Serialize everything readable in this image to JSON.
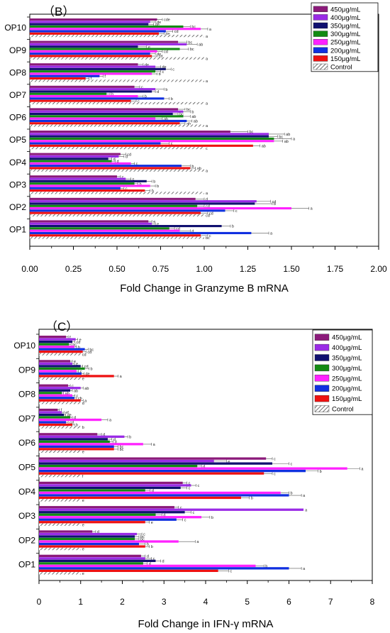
{
  "legend": [
    "450μg/mL",
    "400μg/mL",
    "350μg/mL",
    "300μg/mL",
    "250μg/mL",
    "200μg/mL",
    "150μg/mL",
    "Control"
  ],
  "colors": {
    "450μg/mL": "#8b1a7a",
    "400μg/mL": "#9a2be6",
    "350μg/mL": "#101070",
    "300μg/mL": "#138a13",
    "250μg/mL": "#ff22ff",
    "200μg/mL": "#1030e0",
    "150μg/mL": "#ee1111",
    "Control": "hatch"
  },
  "chart_data": [
    {
      "type": "bar",
      "orientation": "horizontal",
      "panel_label": "（B）",
      "xlabel": "Fold Change in Granzyme B mRNA",
      "ylabel": "",
      "xlim": [
        0,
        2.0
      ],
      "xticks": [
        "0.00",
        "0.25",
        "0.50",
        "0.75",
        "1.00",
        "1.25",
        "1.50",
        "1.75",
        "2.00"
      ],
      "categories": [
        "OP10",
        "OP9",
        "OP8",
        "OP7",
        "OP6",
        "OP5",
        "OP4",
        "OP3",
        "OP2",
        "OP1"
      ],
      "legend_position": "top-right",
      "grid": false,
      "series": [
        {
          "name": "450μg/mL",
          "values": [
            0.73,
            0.85,
            0.62,
            0.6,
            0.85,
            1.15,
            0.52,
            0.5,
            0.95,
            0.68
          ],
          "errors": [
            0.03,
            0.05,
            0.03,
            0.03,
            0.04,
            0.1,
            0.03,
            0.02,
            0.05,
            0.02
          ],
          "letters": [
            "cde",
            "bc",
            "de",
            "c",
            "bc",
            "bc",
            "cd",
            "c",
            "d",
            "e"
          ]
        },
        {
          "name": "400μg/mL",
          "values": [
            0.69,
            0.9,
            0.72,
            0.72,
            0.88,
            1.37,
            0.51,
            0.55,
            1.3,
            0.7
          ],
          "errors": [
            0.03,
            0.06,
            0.03,
            0.05,
            0.04,
            0.09,
            0.03,
            0.03,
            0.08,
            0.02
          ],
          "letters": [
            "de",
            "ab",
            "de",
            "b",
            "b",
            "ab",
            "d",
            "c",
            "cd",
            "e"
          ]
        },
        {
          "name": "350μg/mL",
          "values": [
            0.68,
            0.62,
            0.78,
            0.7,
            0.82,
            1.37,
            0.45,
            0.67,
            1.29,
            1.1
          ],
          "errors": [
            0.03,
            0.05,
            0.03,
            0.02,
            0.03,
            0.05,
            0.02,
            0.03,
            0.1,
            0.05
          ],
          "letters": [
            "de",
            "e",
            "c",
            "d",
            "bc",
            "bc",
            "d",
            "b",
            "b",
            "b"
          ]
        },
        {
          "name": "300μg/mL",
          "values": [
            0.88,
            0.86,
            0.72,
            0.44,
            0.88,
            1.4,
            0.47,
            0.6,
            0.96,
            0.8
          ],
          "errors": [
            0.04,
            0.05,
            0.03,
            0.02,
            0.04,
            0.1,
            0.02,
            0.02,
            0.04,
            0.03
          ],
          "letters": [
            "bc",
            "bc",
            "c",
            "b",
            "ab",
            "a",
            "d",
            "b",
            "cd",
            "cd"
          ]
        },
        {
          "name": "250μg/mL",
          "values": [
            0.98,
            0.73,
            0.7,
            0.62,
            0.72,
            1.4,
            0.58,
            0.69,
            1.5,
            0.86
          ],
          "errors": [
            0.04,
            0.03,
            0.03,
            0.03,
            0.04,
            0.05,
            0.02,
            0.03,
            0.1,
            0.06
          ],
          "letters": [
            "a",
            "cd",
            "b",
            "b",
            "ab",
            "ab",
            "c",
            "b",
            "a",
            "d"
          ]
        },
        {
          "name": "200μg/mL",
          "values": [
            0.78,
            0.69,
            0.4,
            0.77,
            0.9,
            0.75,
            0.87,
            0.52,
            1.12,
            1.27
          ],
          "errors": [
            0.04,
            0.03,
            0.02,
            0.03,
            0.03,
            0.05,
            0.05,
            0.02,
            0.05,
            0.1
          ],
          "letters": [
            "cd",
            "de",
            "f",
            "b",
            "ab",
            "c",
            "b",
            "c",
            "c",
            "a"
          ]
        },
        {
          "name": "150μg/mL",
          "values": [
            0.74,
            0.7,
            0.32,
            0.58,
            0.86,
            1.28,
            0.92,
            0.66,
            0.98,
            0.98
          ],
          "errors": [
            0.03,
            0.03,
            0.02,
            0.03,
            0.03,
            0.04,
            0.03,
            0.03,
            0.04,
            0.04
          ],
          "letters": [
            "de",
            "cd",
            "f",
            "c",
            "ab",
            "ab",
            "ab",
            "b",
            "cd",
            "c"
          ]
        },
        {
          "name": "Control",
          "values": [
            1.0,
            1.0,
            1.0,
            1.0,
            1.0,
            1.0,
            1.0,
            1.0,
            1.0,
            1.0
          ],
          "errors": [
            0.0,
            0.0,
            0.0,
            0.0,
            0.0,
            0.0,
            0.0,
            0.0,
            0.0,
            0.0
          ],
          "letters": [
            "a",
            "a",
            "a",
            "a",
            "a",
            "c",
            "a",
            "a",
            "cd",
            "bc"
          ]
        }
      ]
    },
    {
      "type": "bar",
      "orientation": "horizontal",
      "panel_label": "（C）",
      "xlabel": "Fold Change in IFN-γ mRNA",
      "ylabel": "",
      "xlim": [
        0,
        8
      ],
      "xticks": [
        "0",
        "1",
        "2",
        "3",
        "4",
        "5",
        "6",
        "7",
        "8"
      ],
      "categories": [
        "OP10",
        "OP9",
        "OP8",
        "OP7",
        "OP6",
        "OP5",
        "OP4",
        "OP3",
        "OP2",
        "OP1"
      ],
      "legend_position": "top-right",
      "grid": false,
      "series": [
        {
          "name": "450μg/mL",
          "values": [
            0.65,
            0.75,
            0.7,
            0.45,
            1.4,
            5.45,
            3.45,
            3.25,
            1.28,
            2.45
          ],
          "errors": [
            0.05,
            0.05,
            0.05,
            0.04,
            0.1,
            0.15,
            0.1,
            0.1,
            0.08,
            0.1
          ],
          "letters": [
            "f",
            "e",
            "c",
            "f",
            "d",
            "c",
            "c",
            "c",
            "d",
            "d"
          ]
        },
        {
          "name": "400μg/mL",
          "values": [
            0.88,
            0.8,
            1.0,
            0.55,
            2.05,
            4.2,
            3.65,
            6.35,
            2.35,
            2.55
          ],
          "errors": [
            0.05,
            0.05,
            0.06,
            0.05,
            0.08,
            0.3,
            0.12,
            0.0,
            0.12,
            0.15
          ],
          "letters": [
            "e",
            "e",
            "ab",
            "ef",
            "b",
            "e",
            "c",
            "a",
            "c",
            "c"
          ]
        },
        {
          "name": "350μg/mL",
          "values": [
            0.8,
            1.0,
            0.75,
            0.6,
            1.65,
            5.6,
            3.4,
            3.5,
            2.3,
            2.8
          ],
          "errors": [
            0.06,
            0.05,
            0.05,
            0.04,
            0.1,
            0.4,
            0.15,
            0.15,
            0.1,
            0.12
          ],
          "letters": [
            "cd",
            "cd",
            "ab",
            "de",
            "d",
            "c",
            "c",
            "c",
            "bc",
            "d"
          ]
        },
        {
          "name": "300μg/mL",
          "values": [
            0.72,
            1.1,
            0.55,
            0.75,
            1.7,
            3.8,
            2.55,
            2.8,
            2.3,
            2.5
          ],
          "errors": [
            0.05,
            0.1,
            0.04,
            0.05,
            0.08,
            0.1,
            0.12,
            0.15,
            0.1,
            0.1
          ],
          "letters": [
            "bc",
            "b",
            "ab",
            "d",
            "d",
            "d",
            "d",
            "d",
            "bc",
            "d"
          ]
        },
        {
          "name": "250μg/mL",
          "values": [
            0.85,
            0.9,
            0.8,
            1.5,
            2.5,
            7.4,
            5.8,
            3.9,
            3.35,
            5.2
          ],
          "errors": [
            0.05,
            0.05,
            0.06,
            0.15,
            0.2,
            0.3,
            0.2,
            0.2,
            0.4,
            0.2
          ],
          "letters": [
            "b",
            "c",
            "c",
            "a",
            "a",
            "a",
            "b",
            "b",
            "a",
            "b"
          ]
        },
        {
          "name": "200μg/mL",
          "values": [
            1.1,
            1.02,
            0.85,
            0.65,
            1.8,
            6.4,
            6.0,
            3.3,
            2.4,
            6.0
          ],
          "errors": [
            0.08,
            0.06,
            0.05,
            0.05,
            0.1,
            0.3,
            0.3,
            0.15,
            0.15,
            0.3
          ],
          "letters": [
            "bc",
            "de",
            "cb",
            "cd",
            "bc",
            "b",
            "a",
            "c",
            "b",
            "a"
          ]
        },
        {
          "name": "150μg/mL",
          "values": [
            1.05,
            1.8,
            1.0,
            0.8,
            1.8,
            5.4,
            4.85,
            2.55,
            2.55,
            4.3
          ],
          "errors": [
            0.08,
            0.1,
            0.06,
            0.05,
            0.1,
            0.2,
            0.2,
            0.1,
            0.1,
            0.25
          ],
          "letters": [
            "cd",
            "a",
            "a",
            "b",
            "bc",
            "c",
            "b",
            "e",
            "b",
            "c"
          ]
        },
        {
          "name": "Control",
          "values": [
            1.0,
            1.0,
            1.0,
            1.0,
            1.0,
            1.0,
            1.0,
            1.0,
            1.0,
            1.0
          ],
          "errors": [
            0.0,
            0.0,
            0.0,
            0.0,
            0.0,
            0.0,
            0.0,
            0.0,
            0.0,
            0.0
          ],
          "letters": [
            "cd",
            "e",
            "d",
            "b",
            "e",
            "f",
            "e",
            "e",
            "e",
            "e"
          ]
        }
      ]
    }
  ]
}
